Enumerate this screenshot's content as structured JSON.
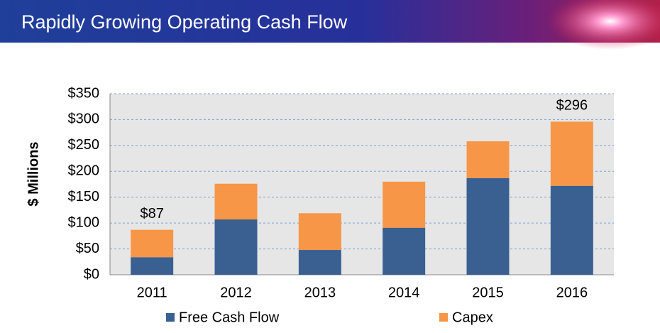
{
  "chart_data": {
    "type": "stacked_bar",
    "title": "Rapidly Growing Operating Cash Flow",
    "y_label": "$ Millions",
    "categories": [
      "2011",
      "2012",
      "2013",
      "2014",
      "2015",
      "2016"
    ],
    "series": [
      {
        "name": "Free Cash Flow",
        "color": "#3a6091",
        "values": [
          34,
          107,
          48,
          91,
          187,
          172
        ]
      },
      {
        "name": "Capex",
        "color": "#f79646",
        "values": [
          53,
          69,
          71,
          89,
          71,
          124
        ]
      }
    ],
    "annotations": [
      {
        "x": "2011",
        "y": 87,
        "label": "$87"
      },
      {
        "x": "2016",
        "y": 296,
        "label": "$296"
      }
    ],
    "ylim": [
      0,
      350
    ],
    "yticks": [
      {
        "value": 0,
        "label": "$0"
      },
      {
        "value": 50,
        "label": "$50"
      },
      {
        "value": 100,
        "label": "$100"
      },
      {
        "value": 150,
        "label": "$150"
      },
      {
        "value": 200,
        "label": "$200"
      },
      {
        "value": 250,
        "label": "$250"
      },
      {
        "value": 300,
        "label": "$300"
      },
      {
        "value": 350,
        "label": "$350"
      }
    ],
    "grid": true,
    "legend": "bottom"
  }
}
